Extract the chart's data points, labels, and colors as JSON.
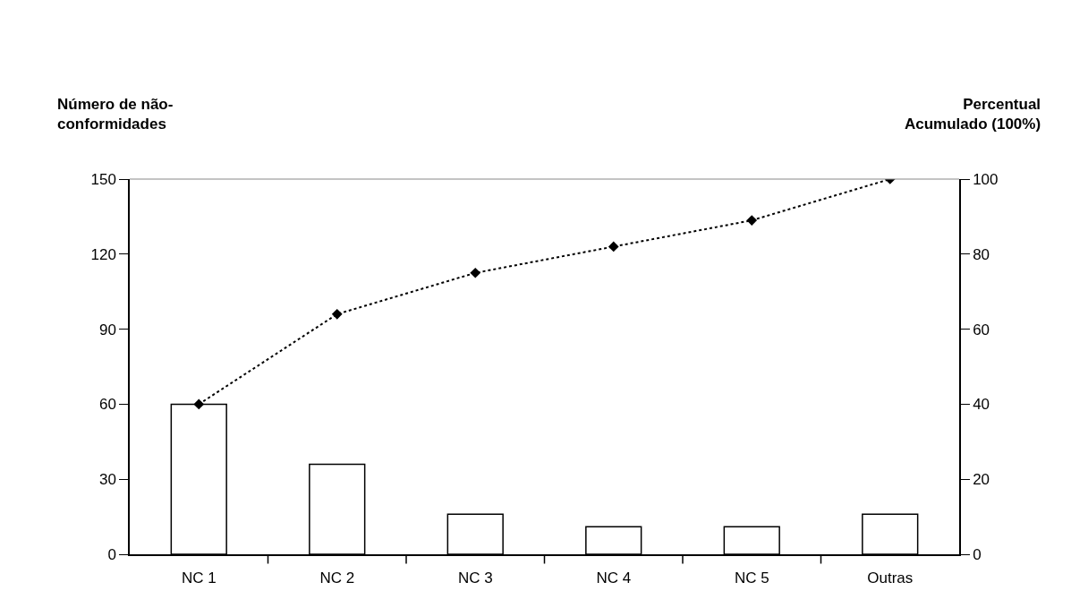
{
  "chart_data": {
    "type": "bar",
    "ylabel": "Número de não-\nconformidades",
    "y2label": "Percentual\nAcumulado (100%)",
    "categories": [
      "NC 1",
      "NC 2",
      "NC 3",
      "NC 4",
      "NC 5",
      "Outras"
    ],
    "series": [
      {
        "color": "#ffffff",
        "values": [
          60,
          36,
          16,
          11,
          11,
          16
        ]
      },
      {
        "type": "line",
        "axis": "y2",
        "color": "#000000",
        "marker": "diamond",
        "line_style": "dotted",
        "values": [
          40,
          64,
          75,
          82,
          89,
          100
        ]
      }
    ],
    "ylim": [
      0,
      150
    ],
    "yticks": [
      0,
      30,
      60,
      90,
      120,
      150
    ],
    "y2lim": [
      0,
      100
    ],
    "y2ticks": [
      0,
      20,
      40,
      60,
      80,
      100
    ]
  }
}
